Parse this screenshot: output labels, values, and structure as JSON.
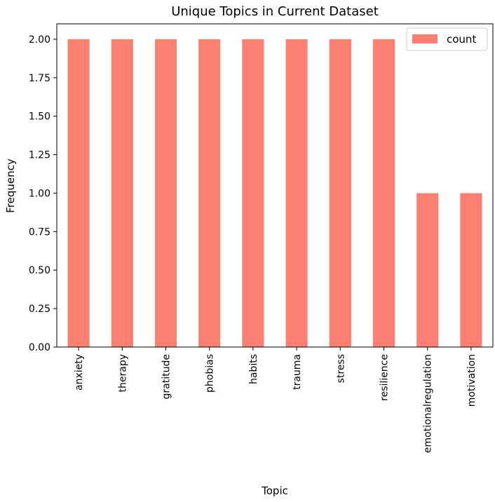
{
  "chart_data": {
    "type": "bar",
    "title": "Unique Topics in Current Dataset",
    "xlabel": "Topic",
    "ylabel": "Frequency",
    "categories": [
      "anxiety",
      "therapy",
      "gratitude",
      "phobias",
      "habits",
      "trauma",
      "stress",
      "resilience",
      "emotionalregulation",
      "motivation"
    ],
    "series": [
      {
        "name": "count",
        "values": [
          2,
          2,
          2,
          2,
          2,
          2,
          2,
          2,
          1,
          1
        ]
      }
    ],
    "ylim": [
      0,
      2.1
    ],
    "yticks": [
      0,
      0.25,
      0.5,
      0.75,
      1.0,
      1.25,
      1.5,
      1.75,
      2.0
    ],
    "ytick_labels": [
      "0.00",
      "0.25",
      "0.50",
      "0.75",
      "1.00",
      "1.25",
      "1.50",
      "1.75",
      "2.00"
    ],
    "grid": false,
    "legend_position": "top-right",
    "bar_color": "#fa8072"
  }
}
